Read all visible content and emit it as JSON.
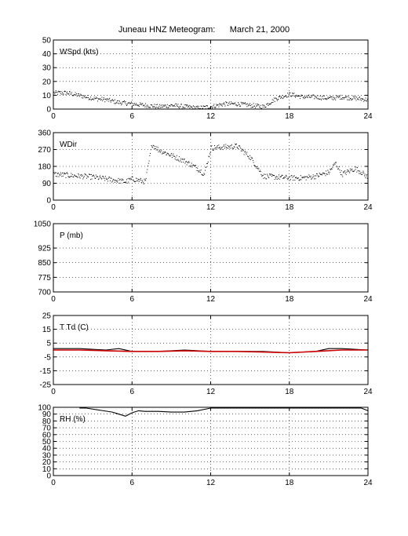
{
  "page": {
    "title": "Juneau HNZ Meteogram:      March 21, 2000"
  },
  "colors": {
    "axis": "#000000",
    "grid": "#000000",
    "obs": "#000000",
    "dewpoint": "#cc0000"
  },
  "chart_data": [
    {
      "type": "scatter",
      "label": "WSpd (kts)",
      "xlim": [
        0,
        24
      ],
      "xticks": [
        0,
        6,
        12,
        18,
        24
      ],
      "ylim": [
        0,
        50
      ],
      "yticks": [
        0,
        10,
        20,
        30,
        40,
        50
      ],
      "grid": true,
      "series": [
        {
          "x": [
            0,
            1,
            2,
            3,
            4,
            5,
            6,
            7,
            8,
            9,
            10,
            11,
            12,
            13,
            14,
            15,
            16,
            17,
            18,
            19,
            20,
            21,
            22,
            23,
            24
          ],
          "values": [
            12,
            12,
            10,
            8,
            7,
            5,
            4,
            3,
            2,
            3,
            2,
            1,
            2,
            4,
            4,
            3,
            2,
            8,
            11,
            9,
            9,
            8,
            9,
            8,
            7
          ]
        }
      ]
    },
    {
      "type": "scatter",
      "label": "WDir",
      "xlim": [
        0,
        24
      ],
      "xticks": [
        0,
        6,
        12,
        18,
        24
      ],
      "ylim": [
        0,
        360
      ],
      "yticks": [
        0,
        90,
        180,
        270,
        360
      ],
      "grid": true,
      "series": [
        {
          "x": [
            0,
            1,
            2,
            3,
            4,
            5,
            5.5,
            6,
            7,
            7.5,
            8,
            9,
            10,
            11,
            11.5,
            12,
            13,
            14,
            15,
            16,
            17,
            18,
            19,
            20,
            21,
            21.5,
            22,
            23,
            23.5,
            24
          ],
          "values": [
            140,
            135,
            130,
            125,
            115,
            105,
            100,
            115,
            100,
            300,
            270,
            240,
            210,
            170,
            140,
            280,
            285,
            290,
            230,
            130,
            125,
            120,
            120,
            130,
            150,
            200,
            140,
            170,
            150,
            120
          ]
        }
      ]
    },
    {
      "type": "scatter",
      "label": "P (mb)",
      "xlim": [
        0,
        24
      ],
      "xticks": [
        0,
        6,
        12,
        18,
        24
      ],
      "ylim": [
        700,
        1050
      ],
      "yticks": [
        700,
        775,
        850,
        925,
        1050
      ],
      "grid": true,
      "series": []
    },
    {
      "type": "line",
      "label": "T Td (C)",
      "xlim": [
        0,
        24
      ],
      "xticks": [
        0,
        6,
        12,
        18,
        24
      ],
      "ylim": [
        -25,
        25
      ],
      "yticks": [
        -25,
        -15,
        -5,
        5,
        15,
        25
      ],
      "grid": true,
      "series": [
        {
          "x": [
            0,
            2,
            4,
            5,
            6,
            8,
            10,
            12,
            14,
            16,
            18,
            20,
            21,
            22,
            24
          ],
          "values": [
            1,
            1,
            0,
            1,
            -1,
            -1,
            0,
            -1,
            -1,
            -1,
            -2,
            -1,
            1,
            1,
            0
          ]
        },
        {
          "x": [
            0,
            2,
            4,
            6,
            8,
            10,
            12,
            14,
            16,
            18,
            20,
            22,
            24
          ],
          "values": [
            0,
            0,
            -0.5,
            -1,
            -1,
            -0.5,
            -1,
            -1,
            -1.5,
            -2,
            -1,
            0,
            0
          ]
        }
      ]
    },
    {
      "type": "line",
      "label": "RH (%)",
      "xlim": [
        0,
        24
      ],
      "xticks": [
        0,
        6,
        12,
        18,
        24
      ],
      "ylim": [
        0,
        100
      ],
      "yticks": [
        0,
        10,
        20,
        30,
        40,
        50,
        60,
        70,
        80,
        90,
        100
      ],
      "grid": true,
      "series": [
        {
          "x": [
            2,
            2.5,
            4.5,
            5,
            5.5,
            6,
            6.5,
            7,
            8,
            9,
            10,
            11,
            12,
            23.5,
            24
          ],
          "values": [
            99,
            100,
            93,
            90,
            87,
            92,
            95,
            94,
            94,
            93,
            93,
            95,
            99,
            99,
            95
          ]
        }
      ]
    }
  ]
}
